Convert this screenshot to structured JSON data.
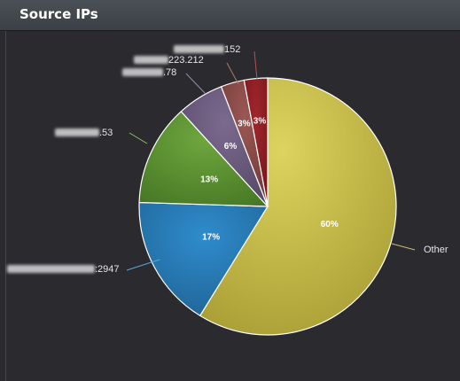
{
  "panel": {
    "title": "Source IPs"
  },
  "chart_data": {
    "type": "pie",
    "slices": [
      {
        "label": "Other",
        "label_hidden": "",
        "label_visible": "Other",
        "value": 60,
        "pct_label": "60%",
        "color": "#c2b845",
        "line": "#c9c06a"
      },
      {
        "label": "2947",
        "label_hidden": "",
        "label_visible": ":2947",
        "value": 17,
        "pct_label": "17%",
        "color": "#2779b3",
        "line": "#5aa6d9"
      },
      {
        "label": ".53",
        "label_hidden": "",
        "label_visible": ".53",
        "value": 13,
        "pct_label": "13%",
        "color": "#5c9430",
        "line": "#8fc35c"
      },
      {
        "label": ".78",
        "label_hidden": "",
        "label_visible": ".78",
        "value": 6,
        "pct_label": "6%",
        "color": "#6b5a7d",
        "line": "#9a8aac"
      },
      {
        "label": "223.212",
        "label_hidden": "",
        "label_visible": "223.212",
        "value": 3,
        "pct_label": "3%",
        "color": "#8b4a47",
        "line": "#b57470"
      },
      {
        "label": "152",
        "label_hidden": "",
        "label_visible": "152",
        "value": 3,
        "pct_label": "3%",
        "color": "#8e1f24",
        "line": "#b85357"
      }
    ]
  }
}
